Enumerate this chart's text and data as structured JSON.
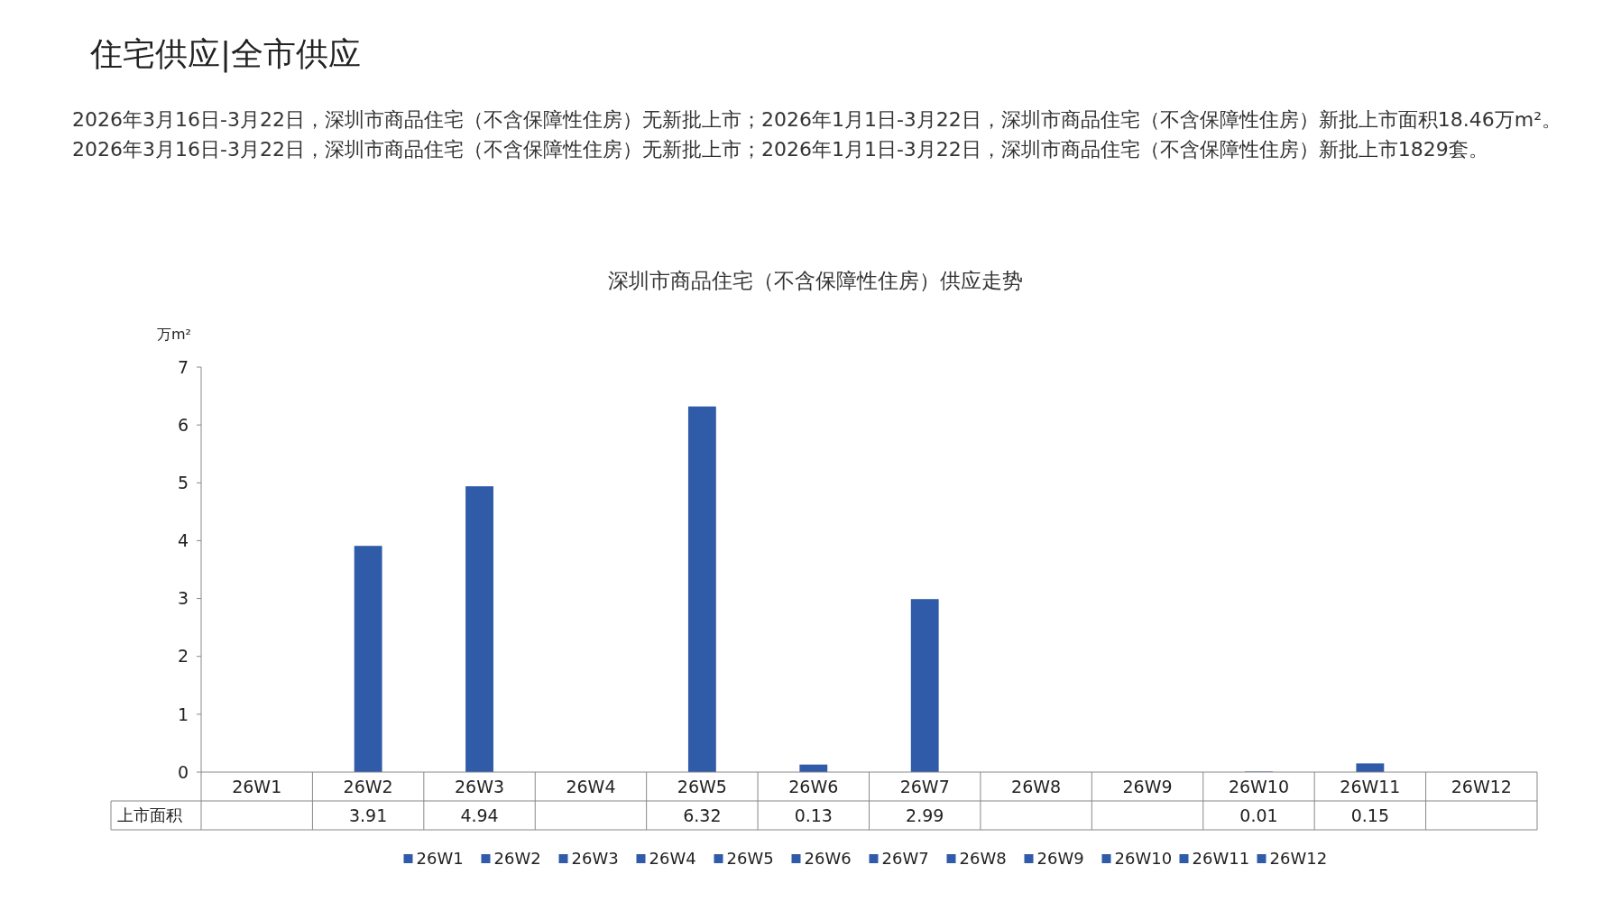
{
  "chart_data": {
    "type": "bar",
    "title": "住宅供应|全市供应",
    "subtitle": "深圳市商品住宅（不含保障性住房）供应走势",
    "annotations": [
      "2026年3月16日-3月22日，深圳市商品住宅（不含保障性住房）无新批上市；2026年1月1日-3月22日，深圳市商品住宅（不含保障性住房）新批上市面积18.46万m²。2026年3月16日-3月22日，深圳市商品住宅（不含保障性住房）无新批上市；2026年1月1日-3月22日，深圳市商品住宅（不含保障性住房）新批上市1829套。"
    ],
    "ylabel": "万m²",
    "categories": [
      "26W1",
      "26W2",
      "26W3",
      "26W4",
      "26W5",
      "26W6",
      "26W7",
      "26W8",
      "26W9",
      "26W10",
      "26W11",
      "26W12"
    ],
    "series": [
      {
        "name": "上市面积",
        "values": [
          null,
          3.91,
          4.94,
          null,
          6.32,
          0.13,
          2.99,
          null,
          null,
          0.01,
          0.15,
          null
        ]
      }
    ],
    "colors": [
      "#2f5ba8",
      "#2f5ba8",
      "#2f5ba8",
      "#2f5ba8",
      "#2f5ba8",
      "#2f5ba8",
      "#2f5ba8",
      "#2f5ba8",
      "#2f5ba8",
      "#2f5ba8",
      "#2f5ba8",
      "#2f5ba8"
    ],
    "ylim": [
      0,
      7
    ],
    "yticks": [
      0,
      1,
      2,
      3,
      4,
      5,
      6,
      7
    ],
    "data_labels": true,
    "legend": "bottom"
  }
}
